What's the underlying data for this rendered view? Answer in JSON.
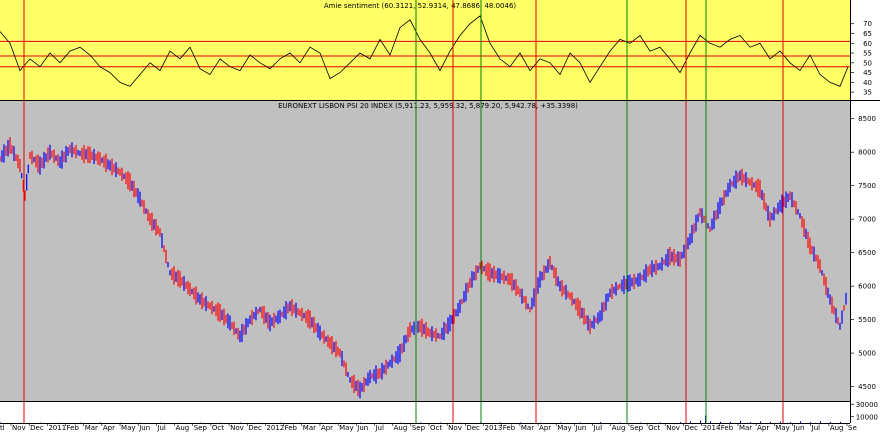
{
  "chart_data": [
    {
      "type": "line",
      "title": "Amie sentiment (60.3121, 52.9314, 47.8686, 48.0046)",
      "background": "#ffff66",
      "line_color": "#000000",
      "ylim": [
        32,
        76
      ],
      "yticks": [
        "70",
        "65",
        "60",
        "55",
        "50",
        "45",
        "40",
        "35"
      ],
      "ytick_values": [
        70,
        65,
        60,
        55,
        50,
        45,
        40,
        35
      ],
      "hlines": [
        {
          "value": 61.0,
          "color": "#e00000"
        },
        {
          "value": 53.5,
          "color": "#e00000"
        },
        {
          "value": 48.0,
          "color": "#e00000"
        }
      ],
      "series": [
        {
          "x": [
            0,
            10,
            20,
            30,
            40,
            50,
            60,
            70,
            80,
            90,
            100,
            110,
            120,
            130,
            140,
            150,
            160,
            170,
            180,
            190,
            200,
            210,
            220,
            230,
            240,
            250,
            260,
            270,
            280,
            290,
            300,
            310,
            320,
            330,
            340,
            350,
            360,
            370,
            380,
            390,
            400,
            410,
            420,
            430,
            440,
            450,
            460,
            470,
            480,
            490,
            500,
            510,
            520,
            530,
            540,
            550,
            560,
            570,
            580,
            590,
            600,
            610,
            620,
            630,
            640,
            650,
            660,
            670,
            680,
            690,
            700,
            710,
            720,
            730,
            740,
            750,
            760,
            770,
            780,
            790,
            800,
            810,
            820,
            830,
            840,
            848
          ],
          "values": [
            66,
            60,
            46,
            52,
            48,
            55,
            50,
            56,
            58,
            54,
            48,
            45,
            40,
            38,
            44,
            50,
            46,
            56,
            52,
            58,
            47,
            44,
            52,
            48,
            46,
            54,
            50,
            47,
            52,
            55,
            50,
            58,
            55,
            42,
            45,
            50,
            55,
            52,
            62,
            54,
            68,
            72,
            62,
            55,
            46,
            56,
            64,
            70,
            74,
            60,
            52,
            48,
            55,
            46,
            52,
            50,
            44,
            55,
            50,
            40,
            48,
            56,
            62,
            60,
            64,
            56,
            58,
            52,
            45,
            55,
            64,
            60,
            58,
            62,
            64,
            58,
            60,
            52,
            56,
            50,
            46,
            54,
            44,
            40,
            38,
            48
          ]
        }
      ]
    },
    {
      "type": "bar",
      "title": "EURONEXT LISBON PSI 20 INDEX (5,911.23, 5,959.32, 5,879.20, 5,942.78, +35.3398)",
      "background": "#c0c0c0",
      "up_color": "#0000ff",
      "down_color": "#ff0000",
      "ylim": [
        4300,
        8600
      ],
      "yticks": [
        "8500",
        "8000",
        "7500",
        "7000",
        "6500",
        "6000",
        "5500",
        "5000",
        "4500"
      ],
      "ytick_values": [
        8500,
        8000,
        7500,
        7000,
        6500,
        6000,
        5500,
        5000,
        4500
      ],
      "series": [
        {
          "x": [
            0,
            10,
            20,
            25,
            30,
            40,
            50,
            60,
            70,
            80,
            90,
            100,
            110,
            120,
            130,
            140,
            150,
            160,
            170,
            180,
            190,
            200,
            210,
            220,
            230,
            240,
            250,
            260,
            270,
            280,
            290,
            300,
            310,
            320,
            330,
            340,
            350,
            360,
            370,
            380,
            390,
            400,
            410,
            420,
            430,
            440,
            450,
            460,
            470,
            480,
            490,
            500,
            510,
            520,
            530,
            540,
            550,
            560,
            570,
            580,
            590,
            600,
            610,
            620,
            630,
            640,
            650,
            660,
            670,
            680,
            690,
            700,
            710,
            720,
            730,
            740,
            750,
            760,
            770,
            780,
            790,
            800,
            810,
            820,
            830,
            840,
            848
          ],
          "values": [
            7900,
            8100,
            7800,
            7350,
            7950,
            7800,
            8000,
            7850,
            8050,
            7980,
            7960,
            7900,
            7800,
            7700,
            7550,
            7300,
            7000,
            6800,
            6200,
            6100,
            5950,
            5800,
            5700,
            5600,
            5450,
            5250,
            5500,
            5650,
            5450,
            5550,
            5700,
            5600,
            5500,
            5300,
            5150,
            5000,
            4600,
            4450,
            4650,
            4700,
            4850,
            5000,
            5350,
            5400,
            5300,
            5250,
            5450,
            5700,
            6050,
            6300,
            6200,
            6150,
            6100,
            5900,
            5650,
            6100,
            6350,
            6000,
            5850,
            5650,
            5400,
            5550,
            5900,
            6000,
            6050,
            6100,
            6250,
            6300,
            6450,
            6400,
            6700,
            7100,
            6850,
            7200,
            7500,
            7650,
            7550,
            7450,
            7000,
            7200,
            7350,
            7050,
            6600,
            6300,
            5800,
            5400,
            5950
          ]
        }
      ]
    },
    {
      "type": "bar",
      "title": "",
      "yticks": [
        "30000",
        "10000"
      ],
      "ytick_values": [
        30000,
        10000
      ],
      "ylim": [
        0,
        32000
      ],
      "bar_color": "#0000cc",
      "x": [
        0,
        20,
        40,
        60,
        80,
        100,
        120,
        140,
        160,
        180,
        200,
        220,
        240,
        260,
        280,
        300,
        320,
        340,
        360,
        380,
        400,
        420,
        440,
        460,
        480,
        500,
        520,
        540,
        560,
        580,
        600,
        620,
        640,
        660,
        680,
        690,
        700,
        705,
        710,
        720,
        730,
        740,
        750,
        760,
        770,
        780,
        790,
        800,
        810,
        820,
        830,
        840
      ],
      "values": [
        800,
        600,
        700,
        500,
        600,
        800,
        500,
        700,
        600,
        500,
        700,
        600,
        800,
        500,
        700,
        600,
        500,
        700,
        800,
        600,
        700,
        900,
        800,
        700,
        1200,
        800,
        900,
        700,
        800,
        900,
        1400,
        900,
        800,
        1000,
        1500,
        2500,
        4000,
        12000,
        3000,
        2000,
        1800,
        3500,
        1500,
        2500,
        1800,
        2200,
        1500,
        2800,
        1400,
        3000,
        2000,
        1800
      ]
    }
  ],
  "x_axis": {
    "labels": [
      "Nov",
      "Dec",
      "2011",
      "Feb",
      "Mar",
      "Apr",
      "May",
      "Jun",
      "Jul",
      "Aug",
      "Sep",
      "Oct",
      "Nov",
      "Dec",
      "2012",
      "Feb",
      "Mar",
      "Apr",
      "May",
      "Jun",
      "Jul",
      "Aug",
      "Sep",
      "Oct",
      "Nov",
      "Dec",
      "2013",
      "Feb",
      "Mar",
      "Apr",
      "May",
      "Jun",
      "Jul",
      "Aug",
      "Sep",
      "Oct",
      "Nov",
      "Dec",
      "2014",
      "Feb",
      "Mar",
      "Apr",
      "May",
      "Jun",
      "Jul",
      "Aug",
      "Se"
    ],
    "first_label": "tl"
  },
  "vertical_markers": [
    {
      "x": 24,
      "color": "#e00000"
    },
    {
      "x": 416,
      "color": "#008000"
    },
    {
      "x": 453,
      "color": "#e00000"
    },
    {
      "x": 481,
      "color": "#008000"
    },
    {
      "x": 536,
      "color": "#e00000"
    },
    {
      "x": 627,
      "color": "#008000"
    },
    {
      "x": 686,
      "color": "#e00000"
    },
    {
      "x": 706,
      "color": "#008000"
    },
    {
      "x": 783,
      "color": "#e00000"
    }
  ]
}
